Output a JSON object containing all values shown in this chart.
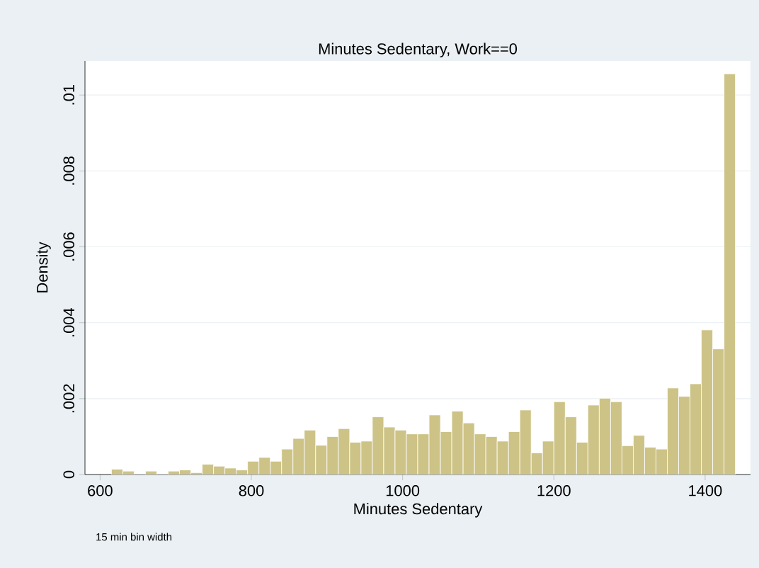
{
  "chart_data": {
    "type": "histogram",
    "title": "Minutes Sedentary, Work==0",
    "xlabel": "Minutes Sedentary",
    "ylabel": "Density",
    "annotations": [
      "15 min bin width"
    ],
    "bins": [
      615,
      630,
      645,
      660,
      675,
      690,
      705,
      720,
      735,
      750,
      765,
      780,
      795,
      810,
      825,
      840,
      855,
      870,
      885,
      900,
      915,
      930,
      945,
      960,
      975,
      990,
      1005,
      1020,
      1035,
      1050,
      1065,
      1080,
      1095,
      1110,
      1125,
      1140,
      1155,
      1170,
      1185,
      1200,
      1215,
      1230,
      1245,
      1260,
      1275,
      1290,
      1305,
      1320,
      1335,
      1350,
      1365,
      1380,
      1395,
      1410,
      1425,
      1440
    ],
    "values": [
      0.00014,
      9e-05,
      0,
      9e-05,
      0,
      9e-05,
      0.00012,
      5e-05,
      0.00027,
      0.00022,
      0.00017,
      0.00012,
      0.00035,
      0.00045,
      0.00035,
      0.00067,
      0.00095,
      0.00117,
      0.00077,
      0.001,
      0.00121,
      0.00085,
      0.00088,
      0.00152,
      0.00125,
      0.00117,
      0.00107,
      0.00107,
      0.00157,
      0.00113,
      0.00167,
      0.00136,
      0.00107,
      0.001,
      0.00088,
      0.00113,
      0.0017,
      0.00057,
      0.00088,
      0.00192,
      0.00152,
      0.00085,
      0.00183,
      0.00201,
      0.00192,
      0.00076,
      0.00103,
      0.00072,
      0.00067,
      0.00228,
      0.00206,
      0.00239,
      0.00381,
      0.00331,
      0.01056
    ],
    "color": "#cdc386",
    "xlim": [
      580,
      1460
    ],
    "ylim": [
      0,
      0.0109
    ],
    "xticks": [
      600,
      800,
      1000,
      1200,
      1400
    ],
    "yticks": [
      {
        "value": 0,
        "label": "0"
      },
      {
        "value": 0.002,
        "label": ".002"
      },
      {
        "value": 0.004,
        "label": ".004"
      },
      {
        "value": 0.006,
        "label": ".006"
      },
      {
        "value": 0.008,
        "label": ".008"
      },
      {
        "value": 0.01,
        "label": ".01"
      }
    ],
    "grid": "y"
  }
}
